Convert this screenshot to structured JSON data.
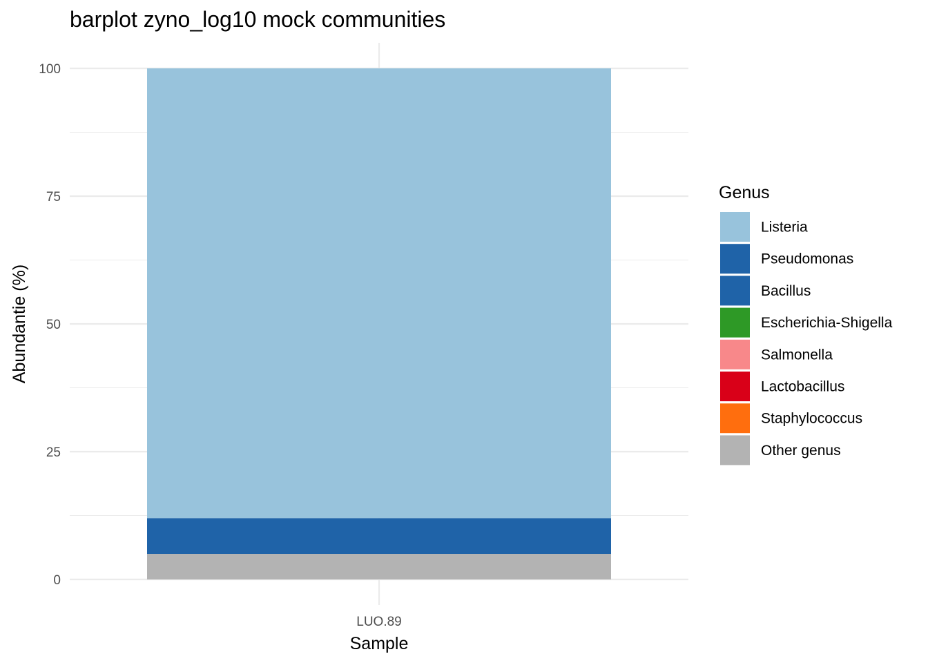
{
  "chart_data": {
    "type": "bar",
    "stacked": true,
    "title": "barplot zyno_log10 mock communities",
    "xlabel": "Sample",
    "ylabel": "Abundantie (%)",
    "ylim": [
      0,
      100
    ],
    "yticks": [
      0,
      25,
      50,
      75,
      100
    ],
    "grid": true,
    "legend_position": "right",
    "legend_title": "Genus",
    "categories": [
      "LUO.89"
    ],
    "series": [
      {
        "name": "Other genus",
        "color": "#b3b3b3",
        "values": [
          5
        ]
      },
      {
        "name": "Pseudomonas",
        "color": "#1f63a8",
        "values": [
          7
        ]
      },
      {
        "name": "Listeria",
        "color": "#98c3dc",
        "values": [
          88
        ]
      }
    ],
    "legend": [
      {
        "name": "Listeria",
        "color": "#98c3dc"
      },
      {
        "name": "Pseudomonas",
        "color": "#1f63a8"
      },
      {
        "name": "Bacillus",
        "color": "#1f63a8"
      },
      {
        "name": "Escherichia-Shigella",
        "color": "#2e9926"
      },
      {
        "name": "Salmonella",
        "color": "#f8888a"
      },
      {
        "name": "Lactobacillus",
        "color": "#d90018"
      },
      {
        "name": "Staphylococcus",
        "color": "#ff6e0e"
      },
      {
        "name": "Other genus",
        "color": "#b3b3b3"
      }
    ]
  }
}
